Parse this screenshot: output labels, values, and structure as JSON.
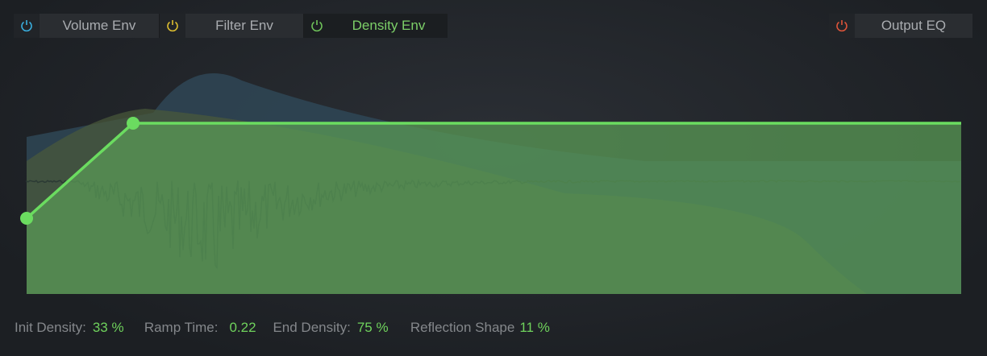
{
  "tabs": [
    {
      "label": "Volume Env",
      "icon": "power-icon",
      "color": "#3ab0e0",
      "active": false
    },
    {
      "label": "Filter Env",
      "icon": "power-icon",
      "color": "#e0c030",
      "active": false
    },
    {
      "label": "Density Env",
      "icon": "power-icon",
      "color": "#6fc35a",
      "active": true
    }
  ],
  "output_eq": {
    "label": "Output EQ",
    "icon": "power-icon",
    "color": "#e0553a"
  },
  "params": {
    "init_density": {
      "label": "Init Density:",
      "value": "33 %"
    },
    "ramp_time": {
      "label": "Ramp Time:",
      "value": "0.22"
    },
    "end_density": {
      "label": "End Density:",
      "value": "75 %"
    },
    "reflection_shape": {
      "label": "Reflection Shape",
      "value": "11 %"
    }
  },
  "colors": {
    "accent": "#6fd25c",
    "envelope_line": "#6bdc60"
  }
}
